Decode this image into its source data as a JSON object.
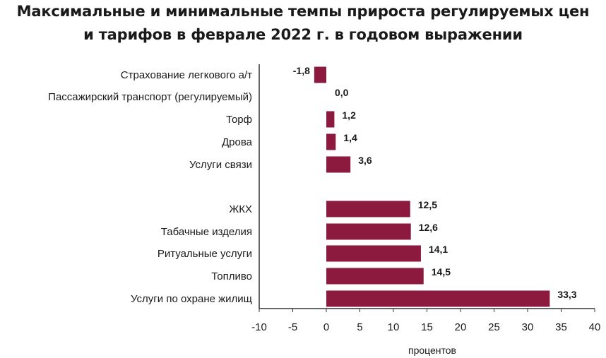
{
  "chart_data": {
    "type": "bar",
    "orientation": "horizontal",
    "title_line1": "Максимальные и минимальные темпы прироста регулируемых цен",
    "title_line2": "и тарифов в феврале 2022 г. в годовом выражении",
    "categories": [
      "Страхование легкового а/т",
      "Пассажирский транспорт (регулируемый)",
      "Торф",
      "Дрова",
      "Услуги связи",
      "ЖКХ",
      "Табачные изделия",
      "Ритуальные услуги",
      "Топливо",
      "Услуги по охране жилищ"
    ],
    "values": [
      -1.8,
      0.0,
      1.2,
      1.4,
      3.6,
      12.5,
      12.6,
      14.1,
      14.5,
      33.3
    ],
    "value_labels": [
      "-1,8",
      "0,0",
      "1,2",
      "1,4",
      "3,6",
      "12,5",
      "12,6",
      "14,1",
      "14,5",
      "33,3"
    ],
    "groups": [
      "minimum",
      "minimum",
      "minimum",
      "minimum",
      "minimum",
      "maximum",
      "maximum",
      "maximum",
      "maximum",
      "maximum"
    ],
    "xlim": [
      -10,
      40
    ],
    "xticks": [
      -10,
      -5,
      0,
      5,
      10,
      15,
      20,
      25,
      30,
      35,
      40
    ],
    "xtick_labels": [
      "-10",
      "-5",
      "0",
      "5",
      "10",
      "15",
      "20",
      "25",
      "30",
      "35",
      "40"
    ],
    "xlabel": "процентов",
    "ylabel": "",
    "grid": false,
    "legend": "none",
    "bar_color": "#8b1a3e"
  }
}
